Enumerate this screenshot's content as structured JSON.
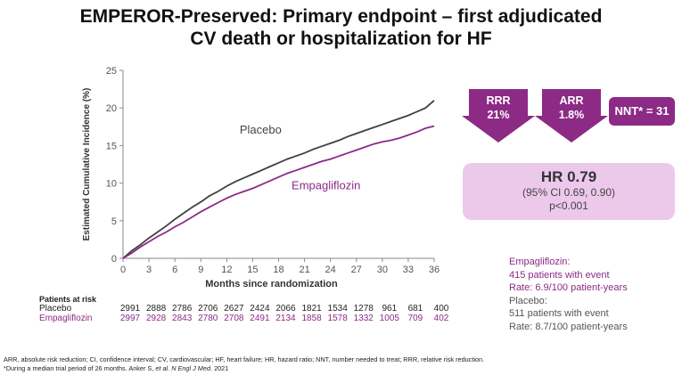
{
  "title": {
    "line1": "EMPEROR-Preserved: Primary endpoint – first  adjudicated",
    "line2": "CV death or hospitalization for HF"
  },
  "chart_data": {
    "type": "line",
    "ylabel": "Estimated Cumulative Incidence (%)",
    "xlabel": "Months since randomization",
    "xlim": [
      0,
      36
    ],
    "ylim": [
      0,
      25
    ],
    "x_ticks": [
      0,
      3,
      6,
      9,
      12,
      15,
      18,
      21,
      24,
      27,
      30,
      33,
      36
    ],
    "y_ticks": [
      0,
      5,
      10,
      15,
      20,
      25
    ],
    "grid": false,
    "series": [
      {
        "name": "Placebo",
        "color": "#404040",
        "x": [
          0,
          1,
          2,
          3,
          4,
          5,
          6,
          7,
          8,
          9,
          10,
          11,
          12,
          13,
          14,
          15,
          16,
          17,
          18,
          19,
          20,
          21,
          22,
          23,
          24,
          25,
          26,
          27,
          28,
          29,
          30,
          31,
          32,
          33,
          34,
          35,
          36
        ],
        "values": [
          0,
          1.0,
          1.8,
          2.7,
          3.5,
          4.3,
          5.2,
          6.0,
          6.8,
          7.5,
          8.3,
          8.9,
          9.6,
          10.2,
          10.7,
          11.2,
          11.7,
          12.2,
          12.7,
          13.2,
          13.6,
          14.0,
          14.5,
          14.9,
          15.3,
          15.7,
          16.2,
          16.6,
          17.0,
          17.4,
          17.8,
          18.2,
          18.6,
          19.0,
          19.5,
          20.0,
          21.0
        ]
      },
      {
        "name": "Empagliflozin",
        "color": "#8c2a86",
        "x": [
          0,
          1,
          2,
          3,
          4,
          5,
          6,
          7,
          8,
          9,
          10,
          11,
          12,
          13,
          14,
          15,
          16,
          17,
          18,
          19,
          20,
          21,
          22,
          23,
          24,
          25,
          26,
          27,
          28,
          29,
          30,
          31,
          32,
          33,
          34,
          35,
          36
        ],
        "values": [
          0,
          0.7,
          1.5,
          2.2,
          2.9,
          3.5,
          4.2,
          4.8,
          5.5,
          6.2,
          6.8,
          7.4,
          8.0,
          8.5,
          8.9,
          9.3,
          9.8,
          10.3,
          10.8,
          11.3,
          11.7,
          12.1,
          12.5,
          12.9,
          13.2,
          13.6,
          14.0,
          14.4,
          14.8,
          15.2,
          15.5,
          15.7,
          16.0,
          16.4,
          16.8,
          17.3,
          17.6
        ]
      }
    ]
  },
  "risk_table": {
    "title": "Patients at risk",
    "rows": [
      {
        "name": "Placebo",
        "color": "#222222",
        "values": [
          "2991",
          "2888",
          "2786",
          "2706",
          "2627",
          "2424",
          "2066",
          "1821",
          "1534",
          "1278",
          "961",
          "681",
          "400"
        ]
      },
      {
        "name": "Empagliflozin",
        "color": "#8c2a86",
        "values": [
          "2997",
          "2928",
          "2843",
          "2780",
          "2708",
          "2491",
          "2134",
          "1858",
          "1578",
          "1332",
          "1005",
          "709",
          "402"
        ]
      }
    ]
  },
  "badges": {
    "rrr": {
      "label": "RRR",
      "value": "21%"
    },
    "arr": {
      "label": "ARR",
      "value": "1.8%"
    },
    "nnt": "NNT* = 31",
    "color": "#8c2a86"
  },
  "hr_box": {
    "hr": "HR 0.79",
    "ci": "(95% CI 0.69, 0.90)",
    "p": "p<0.001"
  },
  "stats": {
    "empa_label": "Empagliflozin:",
    "empa_events": "415 patients with event",
    "empa_rate": "Rate: 6.9/100 patient-years",
    "placebo_label": "Placebo:",
    "placebo_events": "511 patients with event",
    "placebo_rate": "Rate: 8.7/100 patient-years"
  },
  "footnote": {
    "line1": "ARR, absolute risk reduction; CI, confidence interval; CV, cardiovascular; HF, heart failure; HR, hazard ratio; NNT, number needed to treat; RRR, relative risk reduction.",
    "line2_prefix": "*During a median trial period of 26 months. Anker S, ",
    "line2_journal": "et al. N Engl J Med",
    "line2_suffix": ". 2021"
  }
}
